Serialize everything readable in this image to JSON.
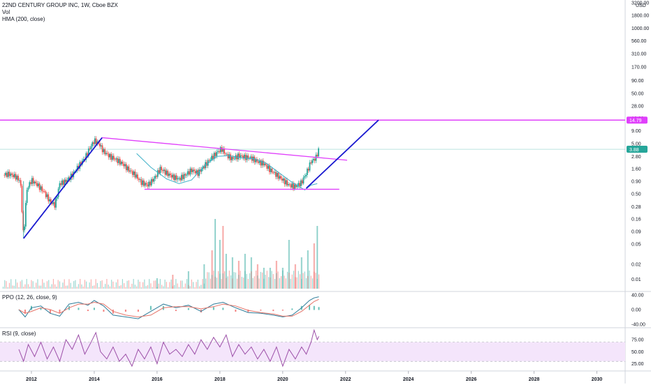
{
  "legend": {
    "title": "22ND CENTURY GROUP INC, 1W, Cboe BZX",
    "vol": "Vol",
    "hma": "HMA (200, close)",
    "ppo": "PPO (12, 26, close, 9)",
    "rsi": "RSI (9, close)"
  },
  "currency": "USD",
  "colors": {
    "up": "#26a69a",
    "down": "#ef5350",
    "hma": "#3fb0c7",
    "magenta": "#e040fb",
    "trendline": "#1a1ad0",
    "ppo_line": "#2e7d9a",
    "ppo_signal": "#e57368",
    "rsi": "#9c4fa8",
    "rsi_band": "#f4e5fb",
    "price_badge": "#26a69a"
  },
  "chart_data": [
    {
      "type": "candlestick",
      "title": "22ND CENTURY GROUP INC, 1W, Cboe BZX",
      "scale": "log",
      "x_range": [
        2011.0,
        2030.9
      ],
      "y_range": [
        0.0065,
        3200
      ],
      "y_ticks": [
        "3200.00",
        "1800.00",
        "1000.00",
        "560.00",
        "310.00",
        "170.00",
        "90.00",
        "50.00",
        "28.00",
        "16.00",
        "9.00",
        "5.00",
        "2.80",
        "1.60",
        "0.90",
        "0.50",
        "0.28",
        "0.16",
        "0.09",
        "0.05",
        "0.02",
        "0.01"
      ],
      "x_ticks": [
        "2012",
        "2014",
        "2016",
        "2018",
        "2020",
        "2022",
        "2024",
        "2026",
        "2028",
        "2030"
      ],
      "price_path": [
        [
          2011.1,
          1.2
        ],
        [
          2011.3,
          1.25
        ],
        [
          2011.5,
          1.1
        ],
        [
          2011.65,
          0.9
        ],
        [
          2011.75,
          0.065
        ],
        [
          2011.85,
          0.6
        ],
        [
          2012.0,
          0.95
        ],
        [
          2012.2,
          0.75
        ],
        [
          2012.4,
          0.55
        ],
        [
          2012.6,
          0.35
        ],
        [
          2012.75,
          0.3
        ],
        [
          2012.9,
          0.8
        ],
        [
          2013.1,
          0.9
        ],
        [
          2013.3,
          1.2
        ],
        [
          2013.5,
          1.8
        ],
        [
          2013.7,
          2.6
        ],
        [
          2013.85,
          4.0
        ],
        [
          2014.0,
          5.8
        ],
        [
          2014.15,
          5.0
        ],
        [
          2014.3,
          3.5
        ],
        [
          2014.5,
          2.8
        ],
        [
          2014.7,
          2.4
        ],
        [
          2014.9,
          2.0
        ],
        [
          2015.1,
          1.5
        ],
        [
          2015.3,
          1.2
        ],
        [
          2015.5,
          0.85
        ],
        [
          2015.7,
          0.75
        ],
        [
          2015.9,
          1.0
        ],
        [
          2016.1,
          1.6
        ],
        [
          2016.3,
          1.3
        ],
        [
          2016.5,
          1.1
        ],
        [
          2016.7,
          1.0
        ],
        [
          2016.9,
          1.2
        ],
        [
          2017.1,
          1.5
        ],
        [
          2017.3,
          1.3
        ],
        [
          2017.5,
          1.8
        ],
        [
          2017.7,
          2.5
        ],
        [
          2017.9,
          3.3
        ],
        [
          2018.05,
          4.0
        ],
        [
          2018.2,
          3.0
        ],
        [
          2018.4,
          2.5
        ],
        [
          2018.6,
          2.9
        ],
        [
          2018.8,
          2.7
        ],
        [
          2019.0,
          2.6
        ],
        [
          2019.2,
          2.2
        ],
        [
          2019.4,
          2.0
        ],
        [
          2019.6,
          1.5
        ],
        [
          2019.8,
          1.2
        ],
        [
          2020.0,
          0.95
        ],
        [
          2020.2,
          0.75
        ],
        [
          2020.4,
          0.7
        ],
        [
          2020.6,
          0.85
        ],
        [
          2020.75,
          1.3
        ],
        [
          2020.9,
          2.2
        ],
        [
          2021.05,
          2.6
        ],
        [
          2021.15,
          3.88
        ]
      ],
      "hma_path": [
        [
          2015.35,
          3.2
        ],
        [
          2015.8,
          1.7
        ],
        [
          2016.3,
          1.0
        ],
        [
          2016.7,
          0.8
        ],
        [
          2017.1,
          0.95
        ],
        [
          2017.5,
          1.8
        ],
        [
          2017.9,
          2.8
        ],
        [
          2018.3,
          2.9
        ],
        [
          2018.7,
          2.6
        ],
        [
          2019.1,
          2.5
        ],
        [
          2019.5,
          2.0
        ],
        [
          2019.9,
          1.3
        ],
        [
          2020.3,
          0.85
        ],
        [
          2020.7,
          0.6
        ],
        [
          2020.9,
          0.75
        ],
        [
          2021.1,
          0.8
        ]
      ],
      "horizontal_lines": [
        {
          "label": "14.79",
          "price": 14.79
        },
        {
          "label": "3.88",
          "price": 3.88
        }
      ],
      "trendlines": [
        {
          "kind": "magenta",
          "points": [
            [
              2014.25,
              6.6
            ],
            [
              2022.05,
              2.35
            ]
          ]
        },
        {
          "kind": "magenta",
          "points": [
            [
              2015.6,
              0.62
            ],
            [
              2021.8,
              0.62
            ]
          ]
        },
        {
          "kind": "trendline",
          "points": [
            [
              2011.75,
              0.065
            ],
            [
              2014.25,
              6.6
            ]
          ]
        },
        {
          "kind": "trendline",
          "points": [
            [
              2020.75,
              0.65
            ],
            [
              2023.05,
              14.79
            ]
          ]
        }
      ]
    },
    {
      "type": "bar",
      "title": "Vol",
      "x": [
        2016.0,
        2016.5,
        2017.0,
        2017.5,
        2017.75,
        2017.85,
        2018.0,
        2018.1,
        2018.2,
        2018.4,
        2018.6,
        2018.8,
        2019.0,
        2019.2,
        2019.4,
        2019.6,
        2019.8,
        2020.0,
        2020.2,
        2020.4,
        2020.6,
        2020.8,
        2021.0,
        2021.1
      ],
      "values": [
        0.15,
        0.2,
        0.25,
        0.35,
        0.55,
        1.0,
        0.7,
        0.9,
        0.5,
        0.45,
        0.4,
        0.5,
        0.45,
        0.35,
        0.3,
        0.3,
        0.4,
        0.3,
        0.7,
        0.35,
        0.45,
        0.55,
        0.65,
        0.9
      ]
    },
    {
      "type": "line",
      "title": "PPO (12, 26, close, 9)",
      "y_ticks": [
        "40.00",
        "0.00",
        "-40.00"
      ],
      "y_range": [
        -40,
        40
      ],
      "x": [
        2011.6,
        2011.8,
        2012.0,
        2012.3,
        2012.6,
        2012.9,
        2013.2,
        2013.5,
        2013.8,
        2014.0,
        2014.3,
        2014.6,
        2015.0,
        2015.4,
        2015.8,
        2016.2,
        2016.6,
        2017.0,
        2017.4,
        2017.8,
        2018.1,
        2018.5,
        2018.9,
        2019.3,
        2019.7,
        2020.0,
        2020.3,
        2020.6,
        2020.85,
        2021.0,
        2021.15
      ],
      "series": [
        {
          "values": [
            0,
            -20,
            5,
            10,
            -10,
            -18,
            15,
            20,
            12,
            25,
            10,
            -15,
            -20,
            -25,
            -5,
            15,
            5,
            12,
            -5,
            15,
            20,
            5,
            -8,
            -10,
            -15,
            -20,
            -15,
            5,
            25,
            32,
            35
          ]
        },
        {
          "values": [
            0,
            -10,
            -5,
            5,
            0,
            -10,
            5,
            15,
            15,
            20,
            15,
            -5,
            -15,
            -20,
            -15,
            5,
            8,
            8,
            2,
            8,
            15,
            10,
            -2,
            -8,
            -12,
            -18,
            -18,
            -5,
            12,
            22,
            28
          ]
        }
      ]
    },
    {
      "type": "line",
      "title": "RSI (9, close)",
      "y_ticks": [
        "75.00",
        "50.00",
        "25.00"
      ],
      "y_range": [
        10,
        100
      ],
      "band": [
        30,
        70
      ],
      "x": [
        2011.6,
        2011.75,
        2011.9,
        2012.1,
        2012.3,
        2012.5,
        2012.7,
        2012.9,
        2013.1,
        2013.3,
        2013.5,
        2013.7,
        2013.9,
        2014.05,
        2014.2,
        2014.4,
        2014.6,
        2014.8,
        2015.0,
        2015.2,
        2015.4,
        2015.6,
        2015.8,
        2016.0,
        2016.2,
        2016.4,
        2016.6,
        2016.8,
        2017.0,
        2017.2,
        2017.4,
        2017.6,
        2017.8,
        2018.0,
        2018.2,
        2018.4,
        2018.6,
        2018.8,
        2019.0,
        2019.2,
        2019.4,
        2019.6,
        2019.8,
        2020.0,
        2020.2,
        2020.4,
        2020.6,
        2020.75,
        2020.9,
        2021.0,
        2021.1,
        2021.15
      ],
      "series": [
        {
          "values": [
            55,
            30,
            65,
            40,
            70,
            35,
            60,
            30,
            75,
            55,
            85,
            45,
            70,
            90,
            50,
            35,
            60,
            30,
            45,
            20,
            55,
            35,
            60,
            25,
            70,
            45,
            55,
            40,
            65,
            45,
            75,
            55,
            80,
            60,
            85,
            40,
            65,
            45,
            60,
            35,
            55,
            30,
            60,
            20,
            55,
            35,
            60,
            45,
            70,
            95,
            75,
            82
          ]
        }
      ]
    }
  ]
}
